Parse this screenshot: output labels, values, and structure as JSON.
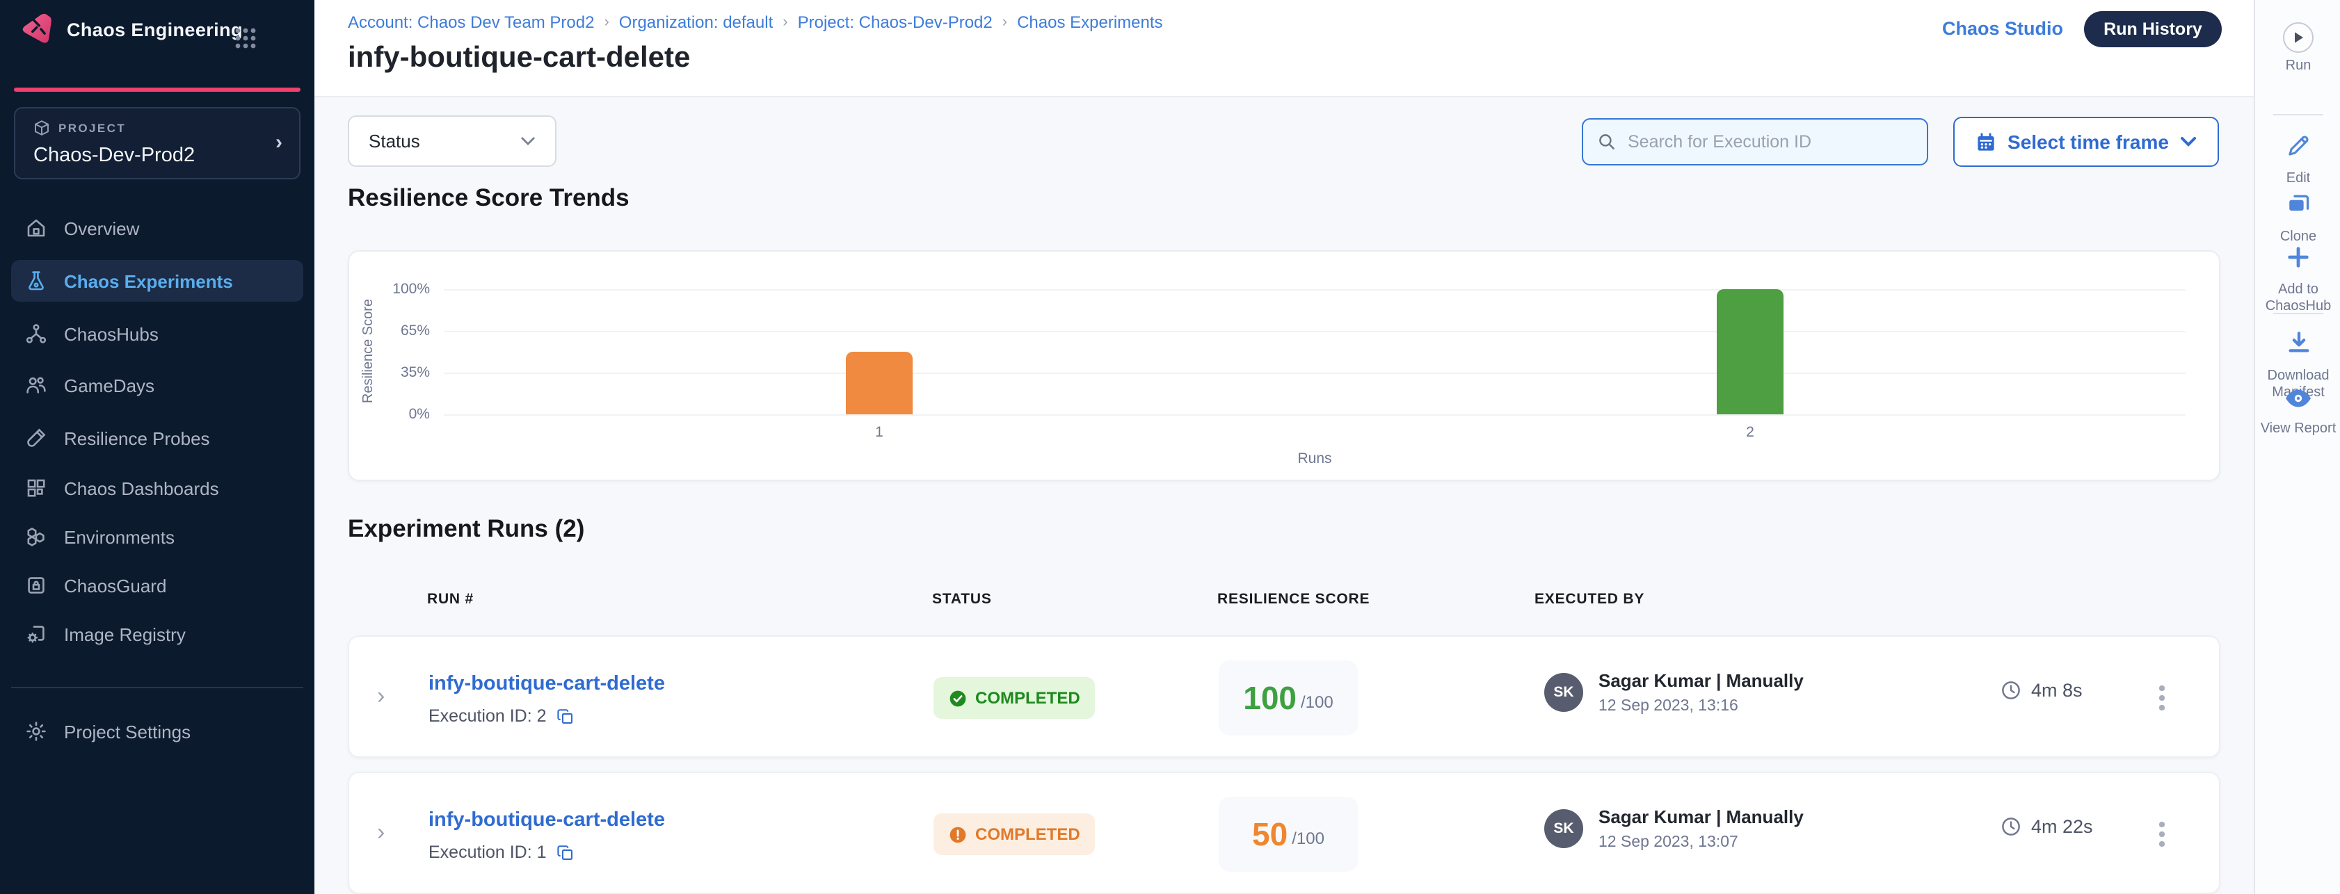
{
  "brand": {
    "name": "Chaos Engineering"
  },
  "sidebar": {
    "project_label": "PROJECT",
    "project_name": "Chaos-Dev-Prod2",
    "items": [
      {
        "label": "Overview",
        "icon": "home-icon",
        "selected": false
      },
      {
        "label": "Chaos Experiments",
        "icon": "flask-icon",
        "selected": true
      },
      {
        "label": "ChaosHubs",
        "icon": "hub-icon",
        "selected": false
      },
      {
        "label": "GameDays",
        "icon": "users-icon",
        "selected": false
      },
      {
        "label": "Resilience Probes",
        "icon": "probe-icon",
        "selected": false
      },
      {
        "label": "Chaos Dashboards",
        "icon": "dashboard-icon",
        "selected": false
      },
      {
        "label": "Environments",
        "icon": "environments-icon",
        "selected": false
      },
      {
        "label": "ChaosGuard",
        "icon": "lock-icon",
        "selected": false
      },
      {
        "label": "Image Registry",
        "icon": "image-registry-icon",
        "selected": false
      },
      {
        "label": "Project Settings",
        "icon": "gear-icon",
        "selected": false
      }
    ]
  },
  "header": {
    "breadcrumb": [
      {
        "label": "Account: Chaos Dev Team Prod2"
      },
      {
        "label": "Organization: default"
      },
      {
        "label": "Project: Chaos-Dev-Prod2"
      },
      {
        "label": "Chaos Experiments"
      }
    ],
    "title": "infy-boutique-cart-delete",
    "chaos_studio_link": "Chaos Studio",
    "run_history_button": "Run History"
  },
  "filters": {
    "status_dropdown": "Status",
    "search_placeholder": "Search for Execution ID",
    "time_frame_button": "Select time frame"
  },
  "chart_section": {
    "title": "Resilience Score Trends"
  },
  "chart_data": {
    "type": "bar",
    "title": "Resilience Score Trends",
    "categories": [
      "1",
      "2"
    ],
    "values": [
      50,
      100
    ],
    "bar_colors": [
      "#EF8A40",
      "#4E9E42"
    ],
    "xlabel": "Runs",
    "ylabel": "Resilience Score",
    "yticks": [
      0,
      35,
      65,
      100
    ],
    "ytick_labels": [
      "0%",
      "35%",
      "65%",
      "100%"
    ],
    "ylim": [
      0,
      100
    ],
    "grid": true,
    "legend": false
  },
  "runs_section": {
    "title": "Experiment Runs (2)",
    "columns": [
      "RUN #",
      "STATUS",
      "RESILIENCE SCORE",
      "EXECUTED BY"
    ],
    "rows": [
      {
        "name": "infy-boutique-cart-delete",
        "execution_id": "Execution ID: 2",
        "status": "COMPLETED",
        "status_kind": "success",
        "score": "100",
        "score_max": "/100",
        "executed_by_initials": "SK",
        "executed_by": "Sagar Kumar | Manually",
        "executed_at": "12 Sep 2023, 13:16",
        "duration": "4m 8s"
      },
      {
        "name": "infy-boutique-cart-delete",
        "execution_id": "Execution ID: 1",
        "status": "COMPLETED",
        "status_kind": "warning",
        "score": "50",
        "score_max": "/100",
        "executed_by_initials": "SK",
        "executed_by": "Sagar Kumar | Manually",
        "executed_at": "12 Sep 2023, 13:07",
        "duration": "4m 22s"
      }
    ]
  },
  "action_rail": {
    "run": "Run",
    "edit": "Edit",
    "clone": "Clone",
    "add_to_chaoshub": "Add to ChaosHub",
    "download_manifest": "Download Manifest",
    "view_report": "View Report"
  },
  "colors": {
    "sidebar_bg": "#0B1A2C",
    "sidebar_selected_bg": "#1D2C46",
    "sidebar_selected_text": "#58AEF0",
    "brand_pink": "#F0406D",
    "link_blue": "#3D7CD9",
    "primary_blue": "#2F6BD0",
    "dark_pill": "#1D2C4C",
    "content_bg": "#F6F8FB",
    "bar_orange": "#EF8A40",
    "bar_green": "#4E9E42",
    "badge_success_bg": "#E4F6DB",
    "badge_success_text": "#1F8A1F",
    "badge_warning_bg": "#FCEFE1",
    "badge_warning_text": "#E1792A",
    "score_green": "#3FA042",
    "score_orange": "#F0862D",
    "avatar_bg": "#575D6E"
  }
}
